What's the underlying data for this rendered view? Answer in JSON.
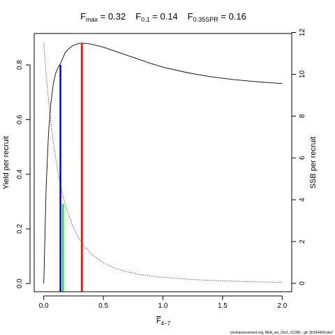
{
  "chart_data": {
    "type": "line",
    "title_parts": [
      {
        "main": "F",
        "sub": "max",
        "rest": " = 0.32"
      },
      {
        "main": "F",
        "sub": "0.1",
        "rest": " = 0.14"
      },
      {
        "main": "F",
        "sub": "0.35SPR",
        "rest": " = 0.16"
      }
    ],
    "xlabel_main": "F",
    "xlabel_sub": "4−7",
    "ylabel_left": "Yield per recruit",
    "ylabel_right": "SSB per recruit",
    "xlim": [
      -0.08,
      2.08
    ],
    "ylim_left": [
      -0.03,
      0.915
    ],
    "ylim_right": [
      -0.4,
      11.95
    ],
    "x_ticks": [
      {
        "v": 0.0,
        "label": "0.0"
      },
      {
        "v": 0.5,
        "label": "0.5"
      },
      {
        "v": 1.0,
        "label": "1.0"
      },
      {
        "v": 1.5,
        "label": "1.5"
      },
      {
        "v": 2.0,
        "label": "2.0"
      }
    ],
    "y_left_ticks": [
      {
        "v": 0.0,
        "label": "0.0"
      },
      {
        "v": 0.2,
        "label": "0.2"
      },
      {
        "v": 0.4,
        "label": "0.4"
      },
      {
        "v": 0.6,
        "label": "0.6"
      },
      {
        "v": 0.8,
        "label": "0.8"
      }
    ],
    "y_right_ticks": [
      {
        "v": 0,
        "label": "0"
      },
      {
        "v": 2,
        "label": "2"
      },
      {
        "v": 4,
        "label": "4"
      },
      {
        "v": 6,
        "label": "6"
      },
      {
        "v": 8,
        "label": "8"
      },
      {
        "v": 10,
        "label": "10"
      },
      {
        "v": 12,
        "label": "12"
      }
    ],
    "series": [
      {
        "axis": "left",
        "style": "solid",
        "x": [
          0,
          0.02,
          0.04,
          0.06,
          0.08,
          0.1,
          0.12,
          0.14,
          0.16,
          0.18,
          0.2,
          0.24,
          0.28,
          0.32,
          0.4,
          0.5,
          0.6,
          0.7,
          0.8,
          0.9,
          1.0,
          1.2,
          1.4,
          1.6,
          1.8,
          2.0
        ],
        "y": [
          0.0,
          0.35,
          0.55,
          0.66,
          0.73,
          0.77,
          0.79,
          0.805,
          0.825,
          0.845,
          0.855,
          0.87,
          0.877,
          0.88,
          0.876,
          0.865,
          0.85,
          0.835,
          0.82,
          0.805,
          0.792,
          0.772,
          0.757,
          0.746,
          0.738,
          0.732
        ]
      },
      {
        "axis": "right",
        "style": "dotted",
        "x": [
          0,
          0.02,
          0.04,
          0.06,
          0.08,
          0.1,
          0.12,
          0.14,
          0.16,
          0.2,
          0.25,
          0.3,
          0.35,
          0.4,
          0.5,
          0.6,
          0.7,
          0.8,
          0.9,
          1.0,
          1.2,
          1.4,
          1.6,
          1.8,
          2.0
        ],
        "y": [
          11.5,
          10.0,
          8.8,
          7.7,
          6.8,
          6.0,
          5.3,
          4.7,
          4.2,
          3.4,
          2.65,
          2.1,
          1.7,
          1.4,
          0.98,
          0.72,
          0.55,
          0.43,
          0.35,
          0.29,
          0.2,
          0.14,
          0.1,
          0.07,
          0.05
        ]
      }
    ],
    "reference_lines": [
      {
        "x": 0.32,
        "y": 0.88,
        "axis": "left",
        "color": "#ff0000"
      },
      {
        "x": 0.14,
        "y": 0.8,
        "axis": "left",
        "color": "#0000ff"
      },
      {
        "x": 0.16,
        "y": 0.292,
        "axis": "left",
        "color": "#00ff00"
      }
    ],
    "footer": "stockassessment.org, NEA_sei_20v1, r12381 , git: 5b33440Scda7"
  }
}
